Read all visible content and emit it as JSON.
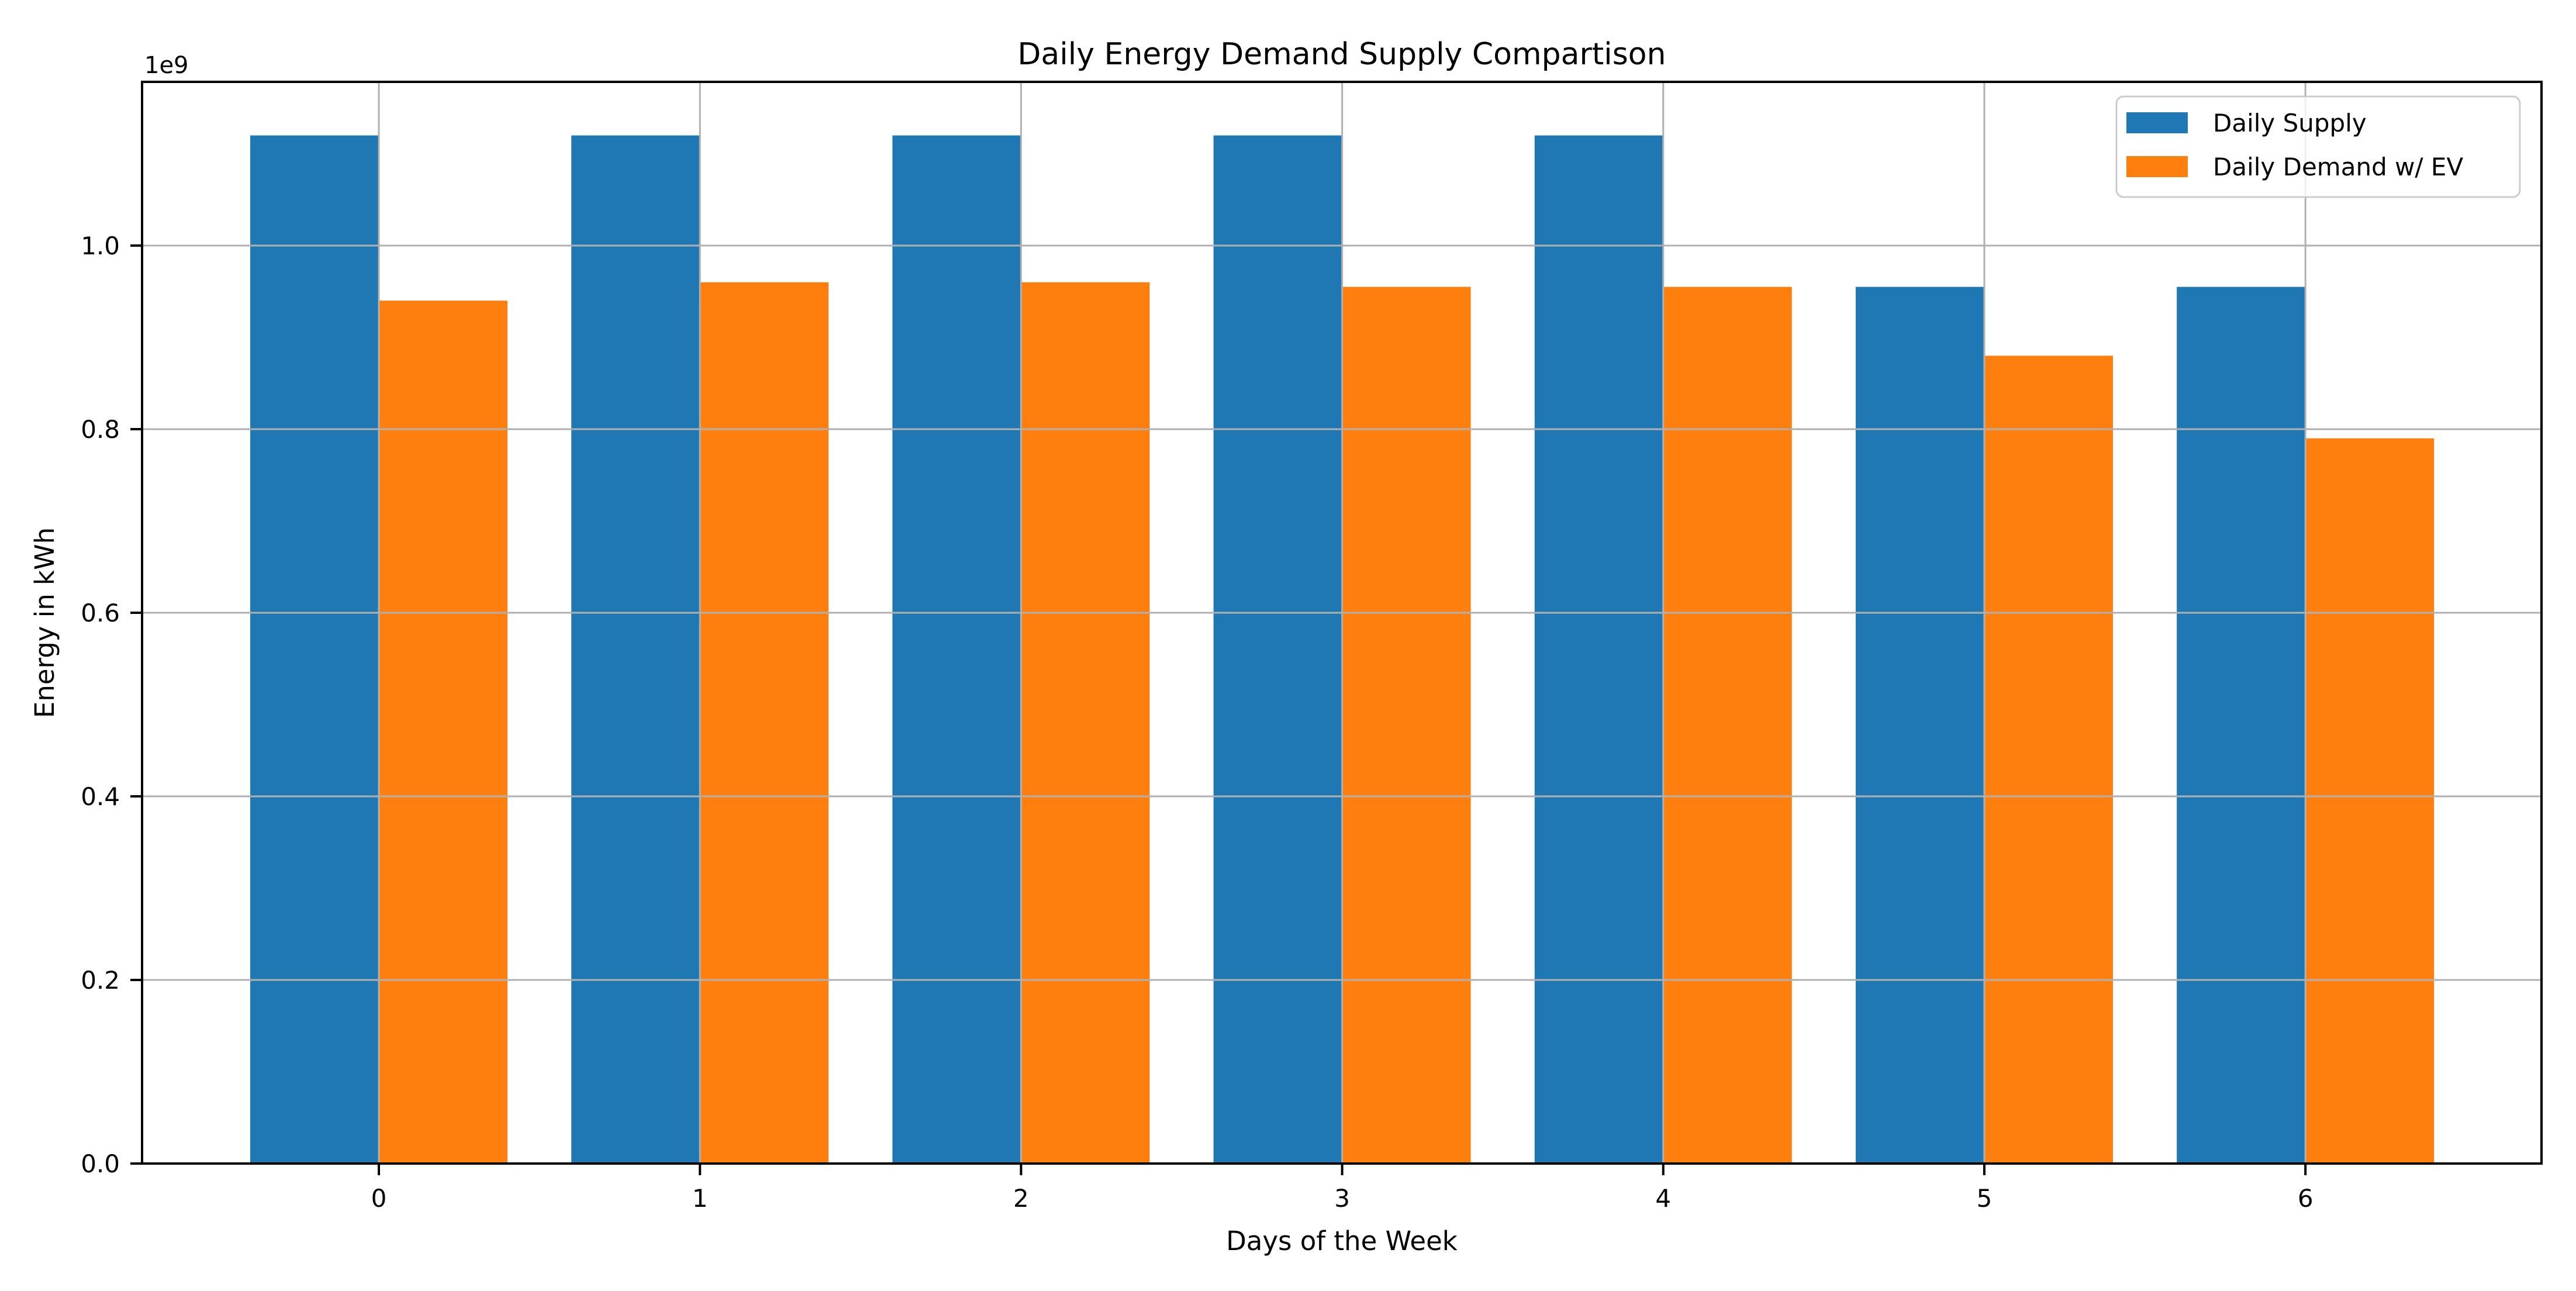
{
  "chart_data": {
    "type": "bar",
    "title": "Daily Energy Demand Supply Compartison",
    "xlabel": "Days of the Week",
    "ylabel": "Energy in kWh",
    "y_offset_label": "1e9",
    "categories": [
      "0",
      "1",
      "2",
      "3",
      "4",
      "5",
      "6"
    ],
    "series": [
      {
        "name": "Daily Supply",
        "color": "#1f77b4",
        "values": [
          1120000000,
          1120000000,
          1120000000,
          1120000000,
          1120000000,
          955000000,
          955000000
        ]
      },
      {
        "name": "Daily Demand w/ EV",
        "color": "#ff7f0e",
        "values": [
          940000000,
          960000000,
          960000000,
          955000000,
          955000000,
          880000000,
          790000000
        ]
      }
    ],
    "bar_width": 0.4,
    "ylim": [
      0,
      1178000000
    ],
    "yticks": [
      0,
      200000000,
      400000000,
      600000000,
      800000000,
      1000000000
    ],
    "ytick_labels": [
      "0.0",
      "0.2",
      "0.4",
      "0.6",
      "0.8",
      "1.0"
    ],
    "grid": true,
    "grid_color": "#b0b0b0",
    "spine_color": "#000000",
    "legend_position": "upper right"
  }
}
